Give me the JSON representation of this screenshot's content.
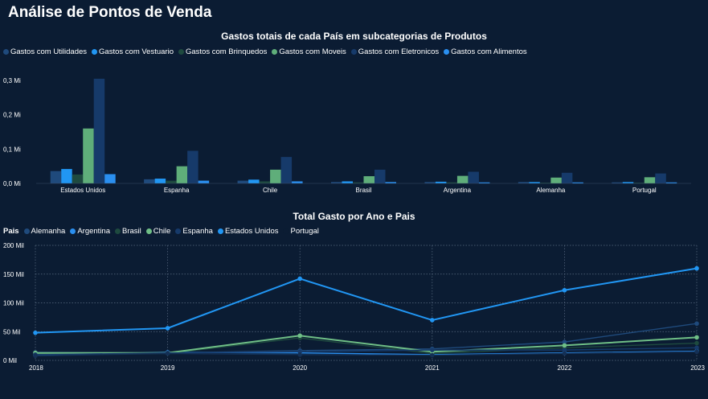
{
  "page_title": "Análise de Pontos de Venda",
  "chart_data": [
    {
      "type": "bar",
      "title": "Gastos totais de cada País em subcategorias de Produtos",
      "legend_position": "top-left",
      "grid": false,
      "categories": [
        "Estados Unidos",
        "Espanha",
        "Chile",
        "Brasil",
        "Argentina",
        "Alemanha",
        "Portugal"
      ],
      "y_ticks": [
        "0,0 Mi",
        "0,1 Mi",
        "0,2 Mi",
        "0,3 Mi"
      ],
      "ylim": [
        0,
        0.3
      ],
      "series": [
        {
          "name": "Gastos com Utilidades",
          "color": "#1f4a7c",
          "values": [
            0.036,
            0.012,
            0.008,
            0.004,
            0.004,
            0.004,
            0.003
          ]
        },
        {
          "name": "Gastos com Vestuario",
          "color": "#2196f3",
          "values": [
            0.042,
            0.014,
            0.011,
            0.006,
            0.005,
            0.004,
            0.004
          ]
        },
        {
          "name": "Gastos com Brinquedos",
          "color": "#1e4a3f",
          "values": [
            0.026,
            0.008,
            0.006,
            0.003,
            0.003,
            0.002,
            0.002
          ]
        },
        {
          "name": "Gastos com Moveis",
          "color": "#5fae7a",
          "values": [
            0.16,
            0.05,
            0.04,
            0.021,
            0.022,
            0.017,
            0.018
          ]
        },
        {
          "name": "Gastos com Eletronicos",
          "color": "#163a6a",
          "values": [
            0.305,
            0.095,
            0.077,
            0.04,
            0.034,
            0.031,
            0.029
          ]
        },
        {
          "name": "Gastos com Alimentos",
          "color": "#2a8ff0",
          "values": [
            0.027,
            0.008,
            0.006,
            0.004,
            0.003,
            0.003,
            0.003
          ]
        }
      ]
    },
    {
      "type": "line",
      "title": "Total Gasto por Ano e Pais",
      "legend_title": "Pais",
      "legend_position": "top-left",
      "grid": true,
      "x": [
        "2018",
        "2019",
        "2020",
        "2021",
        "2022",
        "2023"
      ],
      "y_ticks": [
        "0 Mil",
        "50 Mil",
        "100 Mil",
        "150 Mil",
        "200 Mil"
      ],
      "ylim": [
        0,
        200
      ],
      "series": [
        {
          "name": "Alemanha",
          "color": "#1f4a7c",
          "values": [
            14,
            13,
            17,
            20,
            32,
            64
          ]
        },
        {
          "name": "Argentina",
          "color": "#2a8ff0",
          "values": [
            9,
            14,
            13,
            10,
            13,
            16
          ]
        },
        {
          "name": "Brasil",
          "color": "#1e4a3f",
          "values": [
            11,
            12,
            39,
            12,
            22,
            30
          ]
        },
        {
          "name": "Chile",
          "color": "#6fbf86",
          "values": [
            13,
            13,
            43,
            15,
            26,
            40
          ]
        },
        {
          "name": "Espanha",
          "color": "#163a6a",
          "values": [
            10,
            13,
            15,
            18,
            18,
            22
          ]
        },
        {
          "name": "Estados Unidos",
          "color": "#2196f3",
          "values": [
            48,
            56,
            142,
            70,
            122,
            160
          ]
        },
        {
          "name": "Portugal",
          "color": "#0b1c33",
          "values": [
            8,
            12,
            10,
            9,
            12,
            15
          ]
        }
      ]
    }
  ]
}
